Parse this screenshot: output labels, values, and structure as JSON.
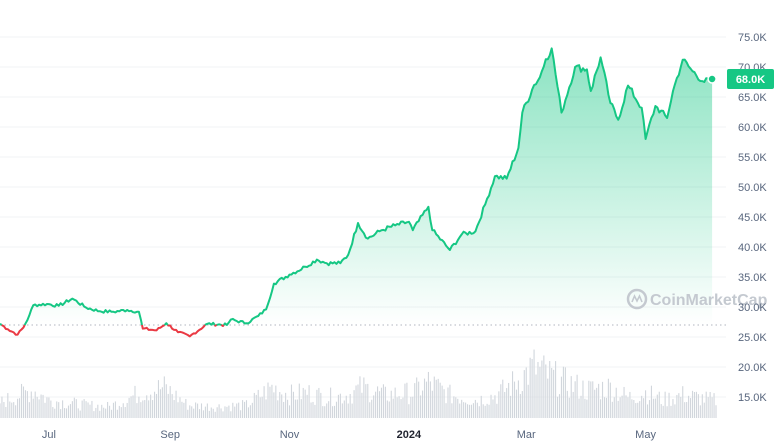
{
  "chart_data": {
    "type": "area",
    "title": "",
    "xlabel": "",
    "ylabel": "",
    "x_ticks": [
      {
        "label": "Jul",
        "date": "2023-07-01",
        "bold": false
      },
      {
        "label": "Sep",
        "date": "2023-09-01",
        "bold": false
      },
      {
        "label": "Nov",
        "date": "2023-11-01",
        "bold": false
      },
      {
        "label": "2024",
        "date": "2024-01-01",
        "bold": true
      },
      {
        "label": "Mar",
        "date": "2024-03-01",
        "bold": false
      },
      {
        "label": "May",
        "date": "2024-05-01",
        "bold": false
      }
    ],
    "y_ticks": [
      "75.0K",
      "70.0K",
      "65.0K",
      "60.0K",
      "55.0K",
      "50.0K",
      "45.0K",
      "40.0K",
      "35.0K",
      "30.0K",
      "25.0K",
      "20.0K",
      "15.0K"
    ],
    "ylim": [
      15000,
      76000
    ],
    "xlim": [
      "2023-06-06",
      "2024-06-06"
    ],
    "baseline": 27000,
    "current_price_label": "68.0K",
    "current_price": 68000,
    "watermark": "CoinMarketCap",
    "colors": {
      "up": "#16c784",
      "down": "#ea3943",
      "volume": "#d1d6dc",
      "baseline": "#b0b6bf"
    },
    "series": [
      {
        "values": [
          {
            "x": "2023-06-06",
            "y": 27200
          },
          {
            "x": "2023-06-10",
            "y": 26300
          },
          {
            "x": "2023-06-15",
            "y": 25400
          },
          {
            "x": "2023-06-18",
            "y": 26600
          },
          {
            "x": "2023-06-21",
            "y": 28600
          },
          {
            "x": "2023-06-23",
            "y": 30300
          },
          {
            "x": "2023-06-30",
            "y": 30500
          },
          {
            "x": "2023-07-06",
            "y": 30200
          },
          {
            "x": "2023-07-13",
            "y": 31400
          },
          {
            "x": "2023-07-20",
            "y": 29900
          },
          {
            "x": "2023-07-27",
            "y": 29300
          },
          {
            "x": "2023-08-03",
            "y": 29200
          },
          {
            "x": "2023-08-10",
            "y": 29500
          },
          {
            "x": "2023-08-16",
            "y": 29200
          },
          {
            "x": "2023-08-18",
            "y": 26400
          },
          {
            "x": "2023-08-25",
            "y": 26100
          },
          {
            "x": "2023-08-30",
            "y": 27300
          },
          {
            "x": "2023-09-05",
            "y": 25800
          },
          {
            "x": "2023-09-11",
            "y": 25100
          },
          {
            "x": "2023-09-20",
            "y": 27200
          },
          {
            "x": "2023-09-30",
            "y": 27000
          },
          {
            "x": "2023-10-02",
            "y": 27900
          },
          {
            "x": "2023-10-10",
            "y": 27300
          },
          {
            "x": "2023-10-16",
            "y": 28500
          },
          {
            "x": "2023-10-20",
            "y": 29600
          },
          {
            "x": "2023-10-24",
            "y": 33900
          },
          {
            "x": "2023-11-01",
            "y": 35400
          },
          {
            "x": "2023-11-09",
            "y": 36700
          },
          {
            "x": "2023-11-15",
            "y": 37900
          },
          {
            "x": "2023-11-20",
            "y": 37300
          },
          {
            "x": "2023-11-27",
            "y": 37300
          },
          {
            "x": "2023-12-01",
            "y": 38700
          },
          {
            "x": "2023-12-06",
            "y": 44000
          },
          {
            "x": "2023-12-11",
            "y": 41400
          },
          {
            "x": "2023-12-18",
            "y": 42800
          },
          {
            "x": "2023-12-25",
            "y": 43600
          },
          {
            "x": "2024-01-01",
            "y": 44200
          },
          {
            "x": "2024-01-03",
            "y": 42800
          },
          {
            "x": "2024-01-11",
            "y": 46700
          },
          {
            "x": "2024-01-13",
            "y": 42800
          },
          {
            "x": "2024-01-22",
            "y": 39500
          },
          {
            "x": "2024-01-28",
            "y": 42100
          },
          {
            "x": "2024-02-04",
            "y": 42600
          },
          {
            "x": "2024-02-09",
            "y": 47100
          },
          {
            "x": "2024-02-14",
            "y": 51800
          },
          {
            "x": "2024-02-20",
            "y": 51400
          },
          {
            "x": "2024-02-26",
            "y": 56500
          },
          {
            "x": "2024-02-28",
            "y": 62400
          },
          {
            "x": "2024-03-05",
            "y": 67000
          },
          {
            "x": "2024-03-08",
            "y": 68300
          },
          {
            "x": "2024-03-11",
            "y": 71300
          },
          {
            "x": "2024-03-14",
            "y": 73100
          },
          {
            "x": "2024-03-19",
            "y": 62400
          },
          {
            "x": "2024-03-26",
            "y": 70000
          },
          {
            "x": "2024-04-01",
            "y": 69600
          },
          {
            "x": "2024-04-03",
            "y": 66000
          },
          {
            "x": "2024-04-08",
            "y": 71600
          },
          {
            "x": "2024-04-13",
            "y": 64000
          },
          {
            "x": "2024-04-17",
            "y": 61200
          },
          {
            "x": "2024-04-22",
            "y": 66900
          },
          {
            "x": "2024-04-29",
            "y": 63200
          },
          {
            "x": "2024-05-01",
            "y": 58000
          },
          {
            "x": "2024-05-06",
            "y": 63500
          },
          {
            "x": "2024-05-12",
            "y": 61500
          },
          {
            "x": "2024-05-15",
            "y": 66000
          },
          {
            "x": "2024-05-20",
            "y": 71200
          },
          {
            "x": "2024-05-25",
            "y": 69300
          },
          {
            "x": "2024-05-31",
            "y": 67500
          },
          {
            "x": "2024-06-04",
            "y": 68000
          }
        ]
      }
    ],
    "volume": [
      {
        "x": "2023-06-06",
        "v": 0.3
      },
      {
        "x": "2023-06-16",
        "v": 0.45
      },
      {
        "x": "2023-06-23",
        "v": 0.55
      },
      {
        "x": "2023-07-01",
        "v": 0.35
      },
      {
        "x": "2023-07-10",
        "v": 0.3
      },
      {
        "x": "2023-07-20",
        "v": 0.25
      },
      {
        "x": "2023-08-01",
        "v": 0.22
      },
      {
        "x": "2023-08-17",
        "v": 0.5
      },
      {
        "x": "2023-08-29",
        "v": 0.6
      },
      {
        "x": "2023-09-10",
        "v": 0.25
      },
      {
        "x": "2023-09-25",
        "v": 0.22
      },
      {
        "x": "2023-10-10",
        "v": 0.25
      },
      {
        "x": "2023-10-23",
        "v": 0.6
      },
      {
        "x": "2023-11-01",
        "v": 0.45
      },
      {
        "x": "2023-11-10",
        "v": 0.5
      },
      {
        "x": "2023-11-20",
        "v": 0.4
      },
      {
        "x": "2023-12-01",
        "v": 0.45
      },
      {
        "x": "2023-12-08",
        "v": 0.6
      },
      {
        "x": "2023-12-20",
        "v": 0.45
      },
      {
        "x": "2024-01-03",
        "v": 0.5
      },
      {
        "x": "2024-01-11",
        "v": 0.7
      },
      {
        "x": "2024-01-22",
        "v": 0.45
      },
      {
        "x": "2024-02-05",
        "v": 0.35
      },
      {
        "x": "2024-02-15",
        "v": 0.45
      },
      {
        "x": "2024-02-28",
        "v": 0.8
      },
      {
        "x": "2024-03-05",
        "v": 1.0
      },
      {
        "x": "2024-03-12",
        "v": 0.85
      },
      {
        "x": "2024-03-20",
        "v": 0.7
      },
      {
        "x": "2024-04-01",
        "v": 0.55
      },
      {
        "x": "2024-04-13",
        "v": 0.6
      },
      {
        "x": "2024-04-22",
        "v": 0.4
      },
      {
        "x": "2024-05-01",
        "v": 0.5
      },
      {
        "x": "2024-05-10",
        "v": 0.35
      },
      {
        "x": "2024-05-20",
        "v": 0.45
      },
      {
        "x": "2024-06-04",
        "v": 0.35
      }
    ]
  }
}
